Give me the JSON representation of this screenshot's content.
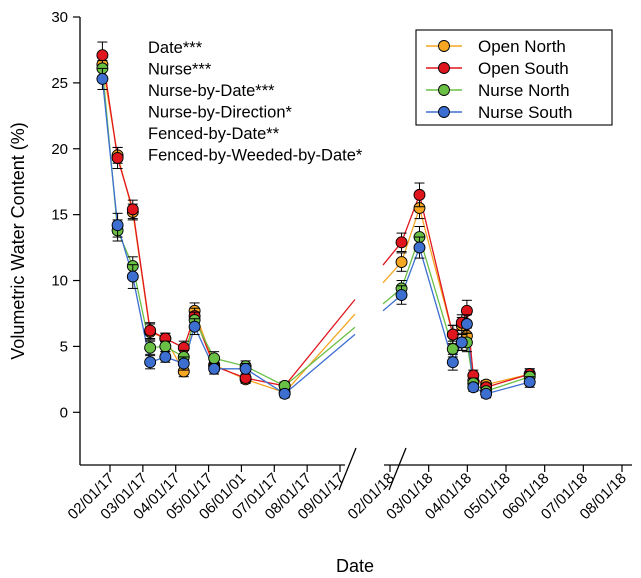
{
  "chart_data": {
    "type": "line",
    "xlabel": "Date",
    "ylabel": "Volumetric Water Content (%)",
    "ylim": [
      -4,
      30
    ],
    "yticks": [
      0,
      5,
      10,
      15,
      20,
      25,
      30
    ],
    "axis_break": true,
    "xtick_labels_2017": [
      "02/01/17",
      "03/01/17",
      "04/01/17",
      "05/01/17",
      "06/01/01",
      "07/01/17",
      "08/01/17",
      "09/01/17"
    ],
    "xtick_labels_2018": [
      "02/01/18",
      "03/01/18",
      "04/01/18",
      "05/01/18",
      "060/1/18",
      "07/01/18",
      "08/01/18"
    ],
    "annotations": [
      "Date***",
      "Nurse***",
      "Nurse-by-Date***",
      "Nurse-by-Direction*",
      "Fenced-by-Date**",
      "Fenced-by-Weeded-by-Date*"
    ],
    "legend_position": "top-right",
    "series": [
      {
        "name": "Open North",
        "color": "#f5a623",
        "points": [
          {
            "x": "2017-01-25",
            "y": 26.4,
            "err": 0.5
          },
          {
            "x": "2017-02-08",
            "y": 19.5,
            "err": 0.6
          },
          {
            "x": "2017-02-22",
            "y": 15.2,
            "err": 0.6
          },
          {
            "x": "2017-03-10",
            "y": 6.1,
            "err": 0.6
          },
          {
            "x": "2017-03-24",
            "y": 5.6,
            "err": 0.4
          },
          {
            "x": "2017-04-10",
            "y": 3.1,
            "err": 0.4
          },
          {
            "x": "2017-04-20",
            "y": 7.7,
            "err": 0.6
          },
          {
            "x": "2017-05-08",
            "y": 3.6,
            "err": 0.4
          },
          {
            "x": "2017-06-06",
            "y": 2.5,
            "err": 0.3
          },
          {
            "x": "2017-07-12",
            "y": 1.5,
            "err": 0.3
          },
          {
            "x": "2018-02-10",
            "y": 11.4,
            "err": 0.7
          },
          {
            "x": "2018-02-24",
            "y": 15.5,
            "err": 0.8
          },
          {
            "x": "2018-03-22",
            "y": 5.9,
            "err": 0.7
          },
          {
            "x": "2018-03-29",
            "y": 6.6,
            "err": 0.6
          },
          {
            "x": "2018-04-02",
            "y": 5.8,
            "err": 0.6
          },
          {
            "x": "2018-04-07",
            "y": 2.4,
            "err": 0.4
          },
          {
            "x": "2018-04-17",
            "y": 2.1,
            "err": 0.3
          },
          {
            "x": "2018-05-21",
            "y": 2.9,
            "err": 0.4
          }
        ]
      },
      {
        "name": "Open South",
        "color": "#e0161e",
        "points": [
          {
            "x": "2017-01-25",
            "y": 27.1,
            "err": 1.0
          },
          {
            "x": "2017-02-08",
            "y": 19.3,
            "err": 0.8
          },
          {
            "x": "2017-02-22",
            "y": 15.4,
            "err": 0.7
          },
          {
            "x": "2017-03-10",
            "y": 6.2,
            "err": 0.6
          },
          {
            "x": "2017-03-24",
            "y": 5.6,
            "err": 0.4
          },
          {
            "x": "2017-04-10",
            "y": 4.9,
            "err": 0.5
          },
          {
            "x": "2017-04-20",
            "y": 7.3,
            "err": 0.6
          },
          {
            "x": "2017-05-08",
            "y": 3.5,
            "err": 0.4
          },
          {
            "x": "2017-06-06",
            "y": 2.6,
            "err": 0.3
          },
          {
            "x": "2017-07-12",
            "y": 2.0,
            "err": 0.3
          },
          {
            "x": "2018-02-10",
            "y": 12.9,
            "err": 0.7
          },
          {
            "x": "2018-02-24",
            "y": 16.5,
            "err": 0.9
          },
          {
            "x": "2018-03-22",
            "y": 5.9,
            "err": 0.7
          },
          {
            "x": "2018-03-29",
            "y": 6.8,
            "err": 0.6
          },
          {
            "x": "2018-04-02",
            "y": 7.7,
            "err": 0.8
          },
          {
            "x": "2018-04-07",
            "y": 2.8,
            "err": 0.4
          },
          {
            "x": "2018-04-17",
            "y": 1.9,
            "err": 0.3
          },
          {
            "x": "2018-05-21",
            "y": 2.9,
            "err": 0.4
          }
        ]
      },
      {
        "name": "Nurse North",
        "color": "#6abf45",
        "points": [
          {
            "x": "2017-01-25",
            "y": 26.1,
            "err": 0.6
          },
          {
            "x": "2017-02-08",
            "y": 13.8,
            "err": 0.8
          },
          {
            "x": "2017-02-22",
            "y": 11.1,
            "err": 0.7
          },
          {
            "x": "2017-03-10",
            "y": 4.9,
            "err": 0.5
          },
          {
            "x": "2017-03-24",
            "y": 5.0,
            "err": 0.4
          },
          {
            "x": "2017-04-10",
            "y": 4.2,
            "err": 0.5
          },
          {
            "x": "2017-04-20",
            "y": 7.0,
            "err": 0.6
          },
          {
            "x": "2017-05-08",
            "y": 4.1,
            "err": 0.5
          },
          {
            "x": "2017-06-06",
            "y": 3.5,
            "err": 0.4
          },
          {
            "x": "2017-07-12",
            "y": 2.0,
            "err": 0.3
          },
          {
            "x": "2018-02-10",
            "y": 9.4,
            "err": 0.6
          },
          {
            "x": "2018-02-24",
            "y": 13.3,
            "err": 0.8
          },
          {
            "x": "2018-03-22",
            "y": 4.8,
            "err": 0.6
          },
          {
            "x": "2018-03-29",
            "y": 5.3,
            "err": 0.6
          },
          {
            "x": "2018-04-02",
            "y": 5.3,
            "err": 0.7
          },
          {
            "x": "2018-04-07",
            "y": 2.2,
            "err": 0.4
          },
          {
            "x": "2018-04-17",
            "y": 1.6,
            "err": 0.3
          },
          {
            "x": "2018-05-21",
            "y": 2.7,
            "err": 0.4
          }
        ]
      },
      {
        "name": "Nurse South",
        "color": "#3d6fd1",
        "points": [
          {
            "x": "2017-01-25",
            "y": 25.3,
            "err": 0.8
          },
          {
            "x": "2017-02-08",
            "y": 14.2,
            "err": 0.9
          },
          {
            "x": "2017-02-22",
            "y": 10.3,
            "err": 0.9
          },
          {
            "x": "2017-03-10",
            "y": 3.8,
            "err": 0.5
          },
          {
            "x": "2017-03-24",
            "y": 4.2,
            "err": 0.4
          },
          {
            "x": "2017-04-10",
            "y": 3.7,
            "err": 0.5
          },
          {
            "x": "2017-04-20",
            "y": 6.5,
            "err": 0.6
          },
          {
            "x": "2017-05-08",
            "y": 3.3,
            "err": 0.4
          },
          {
            "x": "2017-06-06",
            "y": 3.3,
            "err": 0.4
          },
          {
            "x": "2017-07-12",
            "y": 1.4,
            "err": 0.3
          },
          {
            "x": "2018-02-10",
            "y": 8.9,
            "err": 0.7
          },
          {
            "x": "2018-02-24",
            "y": 12.5,
            "err": 0.8
          },
          {
            "x": "2018-03-22",
            "y": 3.8,
            "err": 0.6
          },
          {
            "x": "2018-03-29",
            "y": 5.3,
            "err": 0.6
          },
          {
            "x": "2018-04-02",
            "y": 6.7,
            "err": 0.7
          },
          {
            "x": "2018-04-07",
            "y": 1.9,
            "err": 0.3
          },
          {
            "x": "2018-04-17",
            "y": 1.4,
            "err": 0.3
          },
          {
            "x": "2018-05-21",
            "y": 2.3,
            "err": 0.4
          }
        ]
      }
    ]
  }
}
